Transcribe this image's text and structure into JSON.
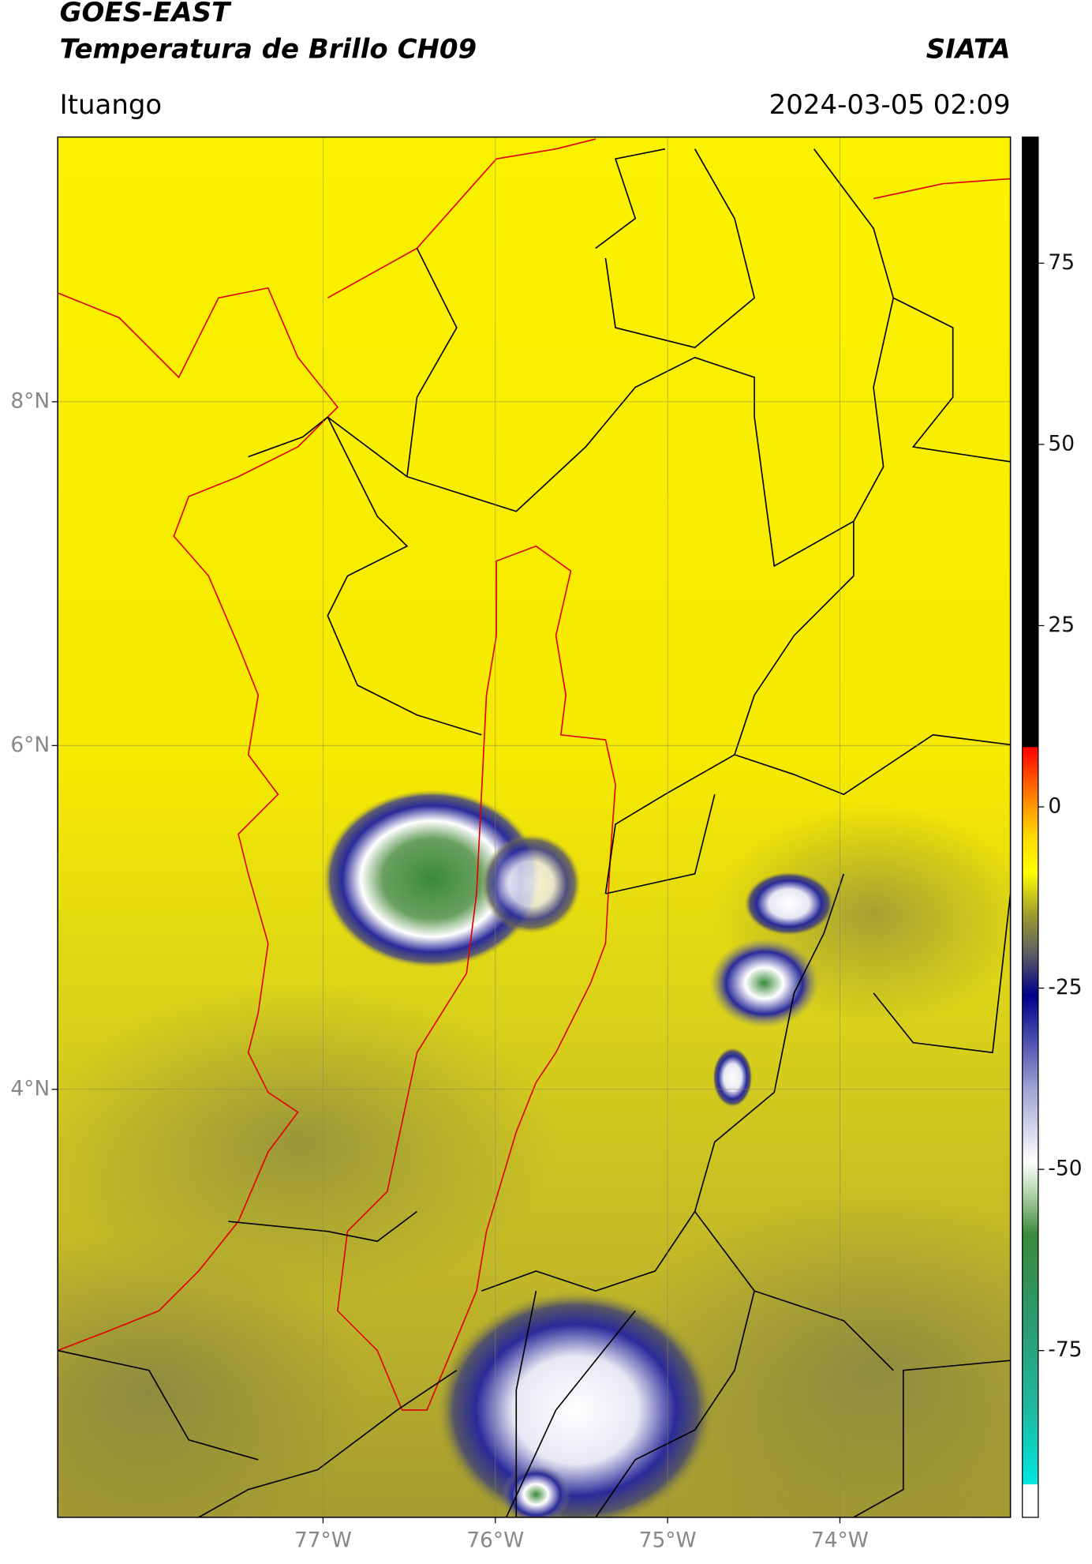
{
  "chart_data": {
    "type": "map",
    "title": "GOES-EAST",
    "subtitle": "Temperatura de Brillo CH09",
    "source": "SIATA",
    "location": "Ituango",
    "datetime": "2024-03-05 02:09",
    "xlim": [
      -78.54,
      -73.01
    ],
    "ylim": [
      1.51,
      9.54
    ],
    "xticks": [
      {
        "value": -77,
        "label": "77°W"
      },
      {
        "value": -76,
        "label": "76°W"
      },
      {
        "value": -75,
        "label": "75°W"
      },
      {
        "value": -74,
        "label": "74°W"
      }
    ],
    "yticks": [
      {
        "value": 4,
        "label": "4°N"
      },
      {
        "value": 6,
        "label": "6°N"
      },
      {
        "value": 8,
        "label": "8°N"
      }
    ],
    "grid": true,
    "colorbar": {
      "lim": [
        -98,
        92.4
      ],
      "ticks": [
        -75,
        -50,
        -25,
        0,
        25,
        50,
        75
      ],
      "stops": [
        {
          "value": -98,
          "color": "#ffffff"
        },
        {
          "value": -93.5,
          "color": "#ffffff"
        },
        {
          "value": -93.4,
          "color": "#00e8e0"
        },
        {
          "value": -83,
          "color": "#20b8a0"
        },
        {
          "value": -71,
          "color": "#2a9a70"
        },
        {
          "value": -59,
          "color": "#3a8a3a"
        },
        {
          "value": -53,
          "color": "#b8d8b0"
        },
        {
          "value": -49,
          "color": "#ffffff"
        },
        {
          "value": -39,
          "color": "#9fa4d4"
        },
        {
          "value": -26,
          "color": "#00008b"
        },
        {
          "value": -20,
          "color": "#606060"
        },
        {
          "value": -15,
          "color": "#9c9a30"
        },
        {
          "value": -9,
          "color": "#ffff00"
        },
        {
          "value": -4,
          "color": "#ffd800"
        },
        {
          "value": 0,
          "color": "#ff9a00"
        },
        {
          "value": 8.2,
          "color": "#ff0000"
        },
        {
          "value": 8.3,
          "color": "#000000"
        },
        {
          "value": 92.4,
          "color": "#000000"
        }
      ]
    }
  }
}
